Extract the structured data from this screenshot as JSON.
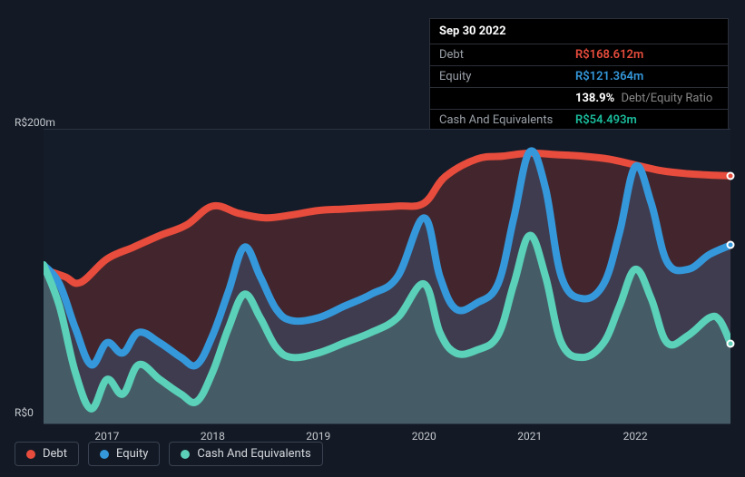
{
  "tooltip": {
    "date": "Sep 30 2022",
    "rows": [
      {
        "label": "Debt",
        "value": "R$168.612m",
        "class": "debt"
      },
      {
        "label": "Equity",
        "value": "R$121.364m",
        "class": "equity"
      },
      {
        "label": "",
        "ratio_value": "138.9%",
        "ratio_label": "Debt/Equity Ratio"
      },
      {
        "label": "Cash And Equivalents",
        "value": "R$54.493m",
        "class": "cash"
      }
    ]
  },
  "chart": {
    "ylim": [
      0,
      200
    ],
    "y_ticks": [
      {
        "v": 200,
        "label": "R$200m",
        "pos": "top"
      },
      {
        "v": 0,
        "label": "R$0",
        "pos": "bottom"
      }
    ],
    "x_start": 2016.4,
    "x_end": 2022.9,
    "x_ticks": [
      2017,
      2018,
      2019,
      2020,
      2021,
      2022
    ],
    "background": "#151c29",
    "page_background": "#131a26",
    "grid_color": "#2a3240",
    "series": [
      {
        "key": "debt",
        "label": "Debt",
        "color": "#e74c3c",
        "fill": "rgba(231,76,60,0.22)",
        "line_width": 2.5,
        "marker_y": 168.6,
        "points": [
          [
            2016.4,
            105
          ],
          [
            2016.6,
            100
          ],
          [
            2016.75,
            96
          ],
          [
            2017.0,
            112
          ],
          [
            2017.25,
            120
          ],
          [
            2017.5,
            128
          ],
          [
            2017.75,
            135
          ],
          [
            2018.0,
            148
          ],
          [
            2018.25,
            143
          ],
          [
            2018.5,
            140
          ],
          [
            2018.75,
            142
          ],
          [
            2019.0,
            145
          ],
          [
            2019.25,
            146
          ],
          [
            2019.5,
            147
          ],
          [
            2019.75,
            148
          ],
          [
            2020.0,
            150
          ],
          [
            2020.2,
            168
          ],
          [
            2020.5,
            180
          ],
          [
            2020.75,
            182
          ],
          [
            2021.0,
            184
          ],
          [
            2021.25,
            183
          ],
          [
            2021.5,
            182
          ],
          [
            2021.75,
            180
          ],
          [
            2022.0,
            176
          ],
          [
            2022.25,
            172
          ],
          [
            2022.5,
            170
          ],
          [
            2022.75,
            169
          ],
          [
            2022.9,
            168.6
          ]
        ]
      },
      {
        "key": "equity",
        "label": "Equity",
        "color": "#3498db",
        "fill": "rgba(52,152,219,0.20)",
        "line_width": 2.5,
        "marker_y": 121.4,
        "points": [
          [
            2016.4,
            108
          ],
          [
            2016.55,
            95
          ],
          [
            2016.7,
            65
          ],
          [
            2016.85,
            40
          ],
          [
            2017.0,
            55
          ],
          [
            2017.15,
            48
          ],
          [
            2017.3,
            62
          ],
          [
            2017.5,
            55
          ],
          [
            2017.7,
            45
          ],
          [
            2017.85,
            40
          ],
          [
            2018.0,
            60
          ],
          [
            2018.15,
            90
          ],
          [
            2018.3,
            120
          ],
          [
            2018.45,
            100
          ],
          [
            2018.6,
            78
          ],
          [
            2018.75,
            70
          ],
          [
            2019.0,
            72
          ],
          [
            2019.25,
            80
          ],
          [
            2019.5,
            88
          ],
          [
            2019.75,
            100
          ],
          [
            2020.0,
            140
          ],
          [
            2020.15,
            100
          ],
          [
            2020.3,
            78
          ],
          [
            2020.5,
            82
          ],
          [
            2020.7,
            95
          ],
          [
            2020.85,
            140
          ],
          [
            2021.0,
            185
          ],
          [
            2021.15,
            160
          ],
          [
            2021.3,
            100
          ],
          [
            2021.5,
            85
          ],
          [
            2021.7,
            95
          ],
          [
            2021.85,
            130
          ],
          [
            2022.0,
            175
          ],
          [
            2022.15,
            150
          ],
          [
            2022.3,
            110
          ],
          [
            2022.5,
            105
          ],
          [
            2022.7,
            115
          ],
          [
            2022.9,
            121.4
          ]
        ]
      },
      {
        "key": "cash",
        "label": "Cash And Equivalents",
        "color": "#5ad1b8",
        "fill": "rgba(90,209,184,0.22)",
        "line_width": 2.5,
        "marker_y": 54.5,
        "points": [
          [
            2016.4,
            108
          ],
          [
            2016.55,
            80
          ],
          [
            2016.7,
            35
          ],
          [
            2016.85,
            10
          ],
          [
            2017.0,
            30
          ],
          [
            2017.15,
            20
          ],
          [
            2017.3,
            40
          ],
          [
            2017.5,
            30
          ],
          [
            2017.7,
            20
          ],
          [
            2017.85,
            15
          ],
          [
            2018.0,
            35
          ],
          [
            2018.15,
            65
          ],
          [
            2018.3,
            88
          ],
          [
            2018.45,
            72
          ],
          [
            2018.6,
            52
          ],
          [
            2018.75,
            45
          ],
          [
            2019.0,
            48
          ],
          [
            2019.25,
            55
          ],
          [
            2019.5,
            62
          ],
          [
            2019.75,
            72
          ],
          [
            2020.0,
            95
          ],
          [
            2020.15,
            62
          ],
          [
            2020.3,
            48
          ],
          [
            2020.5,
            50
          ],
          [
            2020.7,
            60
          ],
          [
            2020.85,
            95
          ],
          [
            2021.0,
            128
          ],
          [
            2021.15,
            100
          ],
          [
            2021.3,
            55
          ],
          [
            2021.5,
            45
          ],
          [
            2021.7,
            55
          ],
          [
            2021.85,
            80
          ],
          [
            2022.0,
            105
          ],
          [
            2022.15,
            85
          ],
          [
            2022.3,
            55
          ],
          [
            2022.5,
            60
          ],
          [
            2022.7,
            72
          ],
          [
            2022.8,
            70
          ],
          [
            2022.9,
            54.5
          ]
        ]
      }
    ]
  },
  "legend": [
    {
      "label": "Debt",
      "color": "#e74c3c"
    },
    {
      "label": "Equity",
      "color": "#3498db"
    },
    {
      "label": "Cash And Equivalents",
      "color": "#5ad1b8"
    }
  ]
}
